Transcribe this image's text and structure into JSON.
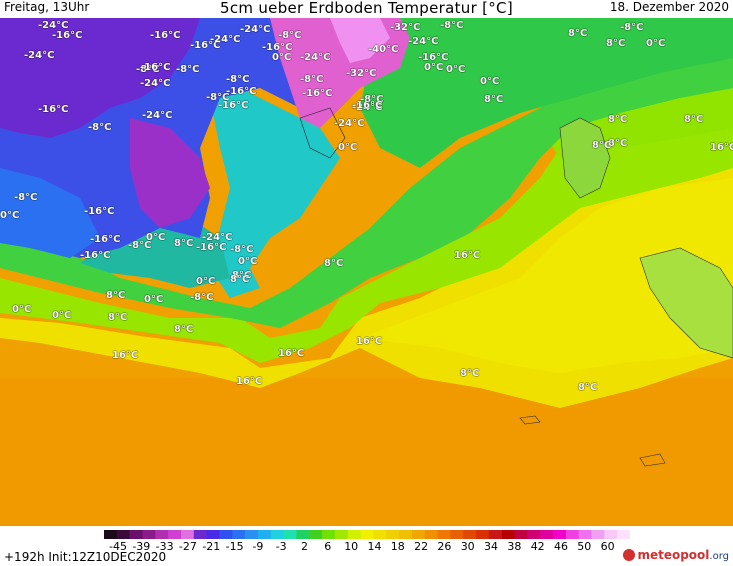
{
  "header": {
    "left": "Freitag, 13Uhr",
    "title": "5cm ueber Erdboden Temperatur [°C]",
    "date": "18. Dezember 2020"
  },
  "footer": {
    "run": "+192h  Init:12Z10DEC2020",
    "logo_main": "meteopool",
    "logo_suffix": ".org"
  },
  "colorbar": {
    "tick_labels": [
      "-45",
      "-39",
      "-33",
      "-27",
      "-21",
      "-15",
      "-9",
      "-3",
      "2",
      "6",
      "10",
      "14",
      "18",
      "22",
      "26",
      "30",
      "34",
      "38",
      "42",
      "46",
      "50",
      "60"
    ],
    "colors": [
      "#1a0a1a",
      "#3b0a3b",
      "#6a0f6a",
      "#8b1a8b",
      "#b02fb0",
      "#d040d0",
      "#e070e0",
      "#6a2ad0",
      "#4a2ae8",
      "#3050f0",
      "#2a70f0",
      "#2890f0",
      "#20b0f0",
      "#20d0e0",
      "#20e0b0",
      "#20d060",
      "#40d020",
      "#70e000",
      "#a0e800",
      "#d0f000",
      "#f0f000",
      "#f0e000",
      "#f0d000",
      "#f0c000",
      "#f0a800",
      "#f09000",
      "#f07800",
      "#e86000",
      "#e04800",
      "#d83000",
      "#c81818",
      "#b80000",
      "#c00040",
      "#d00070",
      "#e000a0",
      "#f000c8",
      "#f040e0",
      "#f070f0",
      "#f0a0f0",
      "#f8c8f8",
      "#ffe0ff"
    ]
  },
  "map_labels": [
    {
      "text": "-24°C",
      "name": "label-minus24-nw1"
    },
    {
      "text": "-16°C",
      "name": "label-minus16-nw2"
    },
    {
      "text": "-24°C",
      "name": "label-minus24-nw3"
    },
    {
      "text": "-16°C",
      "name": "label-minus16-n1"
    },
    {
      "text": "-16°C",
      "name": "label-minus16-n2"
    },
    {
      "text": "-24°C",
      "name": "label-minus24-n3"
    },
    {
      "text": "-24°C",
      "name": "label-minus24-n4"
    },
    {
      "text": "-16°C",
      "name": "label-minus16-n5"
    },
    {
      "text": "-8°C",
      "name": "label-minus8-n6"
    },
    {
      "text": "0°C",
      "name": "label-0-n7"
    },
    {
      "text": "-24°C",
      "name": "label-minus24-n8"
    },
    {
      "text": "-8°C",
      "name": "label-minus8-n9"
    },
    {
      "text": "-32°C",
      "name": "label-minus32-g1"
    },
    {
      "text": "-8°C",
      "name": "label-minus8-g2"
    },
    {
      "text": "-24°C",
      "name": "label-minus24-g3"
    },
    {
      "text": "-40°C",
      "name": "label-minus40-g4"
    },
    {
      "text": "-16°C",
      "name": "label-minus16-g5"
    },
    {
      "text": "0°C",
      "name": "label-0-g6"
    },
    {
      "text": "-32°C",
      "name": "label-minus32-g7"
    },
    {
      "text": "8°C",
      "name": "label-8-ne1"
    },
    {
      "text": "8°C",
      "name": "label-8-ne2"
    },
    {
      "text": "-8°C",
      "name": "label-minus8-ne3"
    },
    {
      "text": "0°C",
      "name": "label-0-ne4"
    },
    {
      "text": "0°C",
      "name": "label-0-ne5"
    },
    {
      "text": "0°C",
      "name": "label-0-ne6"
    },
    {
      "text": "8°C",
      "name": "label-8-ne7"
    },
    {
      "text": "8°C",
      "name": "label-8-ne8"
    },
    {
      "text": "-8°C",
      "name": "label-minus8-c1"
    },
    {
      "text": "-16°C",
      "name": "label-minus16-c2"
    },
    {
      "text": "-8°C",
      "name": "label-minus8-c3"
    },
    {
      "text": "-24°C",
      "name": "label-minus24-c4"
    },
    {
      "text": "-8°C",
      "name": "label-minus8-c5"
    },
    {
      "text": "-16°C",
      "name": "label-minus16-c6"
    },
    {
      "text": "-16°C",
      "name": "label-minus16-c7"
    },
    {
      "text": "-8°C",
      "name": "label-minus8-c8"
    },
    {
      "text": "-24°C",
      "name": "label-minus24-c9"
    },
    {
      "text": "-16°C",
      "name": "label-minus16-c10"
    },
    {
      "text": "-16°C",
      "name": "label-minus16-c11"
    },
    {
      "text": "-24°C",
      "name": "label-minus24-c12"
    },
    {
      "text": "-8°C",
      "name": "label-minus8-c13"
    },
    {
      "text": "-16°C",
      "name": "label-minus16-c14"
    },
    {
      "text": "-8°C",
      "name": "label-minus8-c15"
    },
    {
      "text": "-24°C",
      "name": "label-minus24-c16"
    },
    {
      "text": "0°C",
      "name": "label-0-c17"
    },
    {
      "text": "-8°C",
      "name": "label-minus8-w1"
    },
    {
      "text": "0°C",
      "name": "label-0-w2"
    },
    {
      "text": "-16°C",
      "name": "label-minus16-w3"
    },
    {
      "text": "-16°C",
      "name": "label-minus16-w4"
    },
    {
      "text": "-8°C",
      "name": "label-minus8-w5"
    },
    {
      "text": "0°C",
      "name": "label-0-w6"
    },
    {
      "text": "8°C",
      "name": "label-8-w7"
    },
    {
      "text": "-24°C",
      "name": "label-minus24-w8"
    },
    {
      "text": "-16°C",
      "name": "label-minus16-w9"
    },
    {
      "text": "-8°C",
      "name": "label-minus8-w10"
    },
    {
      "text": "0°C",
      "name": "label-0-w11"
    },
    {
      "text": "-16°C",
      "name": "label-minus16-w12"
    },
    {
      "text": "8°C",
      "name": "label-8-c18"
    },
    {
      "text": "0°C",
      "name": "label-0-c19"
    },
    {
      "text": "-8°C",
      "name": "label-minus8-w13"
    },
    {
      "text": "8°C",
      "name": "label-8-w14"
    },
    {
      "text": "0°C",
      "name": "label-0-w15"
    },
    {
      "text": "8°C",
      "name": "label-8-c20"
    },
    {
      "text": "8°C",
      "name": "label-8-c21"
    },
    {
      "text": "0°C",
      "name": "label-0-w16"
    },
    {
      "text": "0°C",
      "name": "label-0-w17"
    },
    {
      "text": "8°C",
      "name": "label-8-c22"
    },
    {
      "text": "8°C",
      "name": "label-8-c23"
    },
    {
      "text": "16°C",
      "name": "label-16-s1"
    },
    {
      "text": "16°C",
      "name": "label-16-s2"
    },
    {
      "text": "16°C",
      "name": "label-16-s3"
    },
    {
      "text": "16°C",
      "name": "label-16-s4"
    },
    {
      "text": "16°C",
      "name": "label-16-s5"
    },
    {
      "text": "8°C",
      "name": "label-8-e1"
    },
    {
      "text": "8°C",
      "name": "label-8-e2"
    },
    {
      "text": "8°C",
      "name": "label-8-e3"
    },
    {
      "text": "8°C",
      "name": "label-8-e4"
    },
    {
      "text": "8°C",
      "name": "label-8-e5"
    },
    {
      "text": "16°C",
      "name": "label-16-e6"
    }
  ]
}
